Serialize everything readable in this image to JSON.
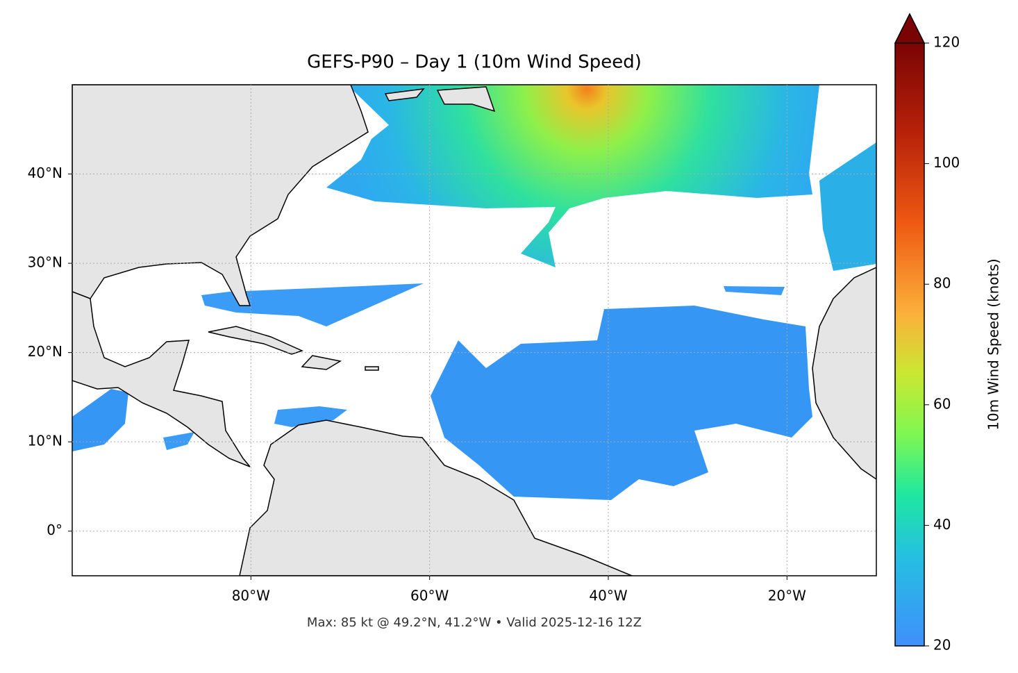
{
  "chart_data": {
    "type": "map",
    "title": "GEFS-P90 – Day 1 (10m Wind Speed)",
    "subtitle": "Max: 85 kt @ 49.2°N, 41.2°W • Valid 2025-12-16 12Z",
    "xlim": [
      -100,
      -10
    ],
    "ylim": [
      -5,
      50
    ],
    "xticks": [
      {
        "value": -80,
        "label": "80°W"
      },
      {
        "value": -60,
        "label": "60°W"
      },
      {
        "value": -40,
        "label": "40°W"
      },
      {
        "value": -20,
        "label": "20°W"
      }
    ],
    "yticks": [
      {
        "value": 0,
        "label": "0°"
      },
      {
        "value": 10,
        "label": "10°N"
      },
      {
        "value": 20,
        "label": "20°N"
      },
      {
        "value": 30,
        "label": "30°N"
      },
      {
        "value": 40,
        "label": "40°N"
      }
    ],
    "grid": true,
    "colorbar": {
      "label": "10m Wind Speed (knots)",
      "lim": [
        20,
        120
      ],
      "ticks": [
        20,
        40,
        60,
        80,
        100,
        120
      ],
      "extend": "max"
    }
  }
}
